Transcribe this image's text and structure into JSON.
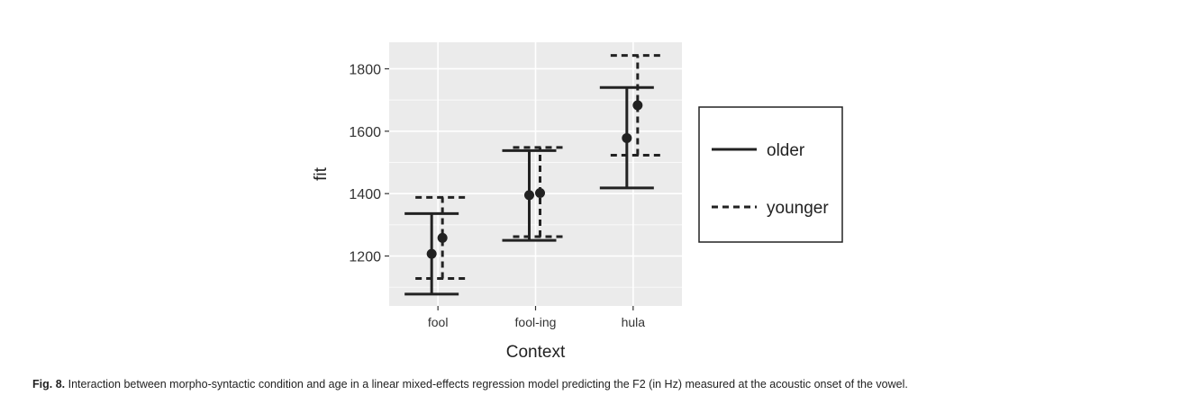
{
  "chart_data": {
    "type": "errorbar",
    "xlabel": "Context",
    "ylabel": "fit",
    "categories": [
      "fool",
      "fool-ing",
      "hula"
    ],
    "y_ticks": [
      1200,
      1400,
      1600,
      1800
    ],
    "ylim": [
      1040,
      1885
    ],
    "grid": true,
    "legend_position": "right",
    "series": [
      {
        "name": "older",
        "line_style": "solid",
        "fit": [
          1207,
          1395,
          1578
        ],
        "lower": [
          1078,
          1250,
          1418
        ],
        "upper": [
          1336,
          1538,
          1740
        ]
      },
      {
        "name": "younger",
        "line_style": "dashed",
        "fit": [
          1258,
          1402,
          1683
        ],
        "lower": [
          1128,
          1262,
          1523
        ],
        "upper": [
          1388,
          1548,
          1843
        ]
      }
    ]
  },
  "caption": {
    "label": "Fig. 8.",
    "text": "Interaction between morpho-syntactic condition and age in a linear mixed-effects regression model predicting the F2 (in Hz) measured at the acoustic onset of the vowel."
  },
  "colors": {
    "panel": "#ebebeb",
    "grid": "#ffffff",
    "ink": "#222222"
  }
}
